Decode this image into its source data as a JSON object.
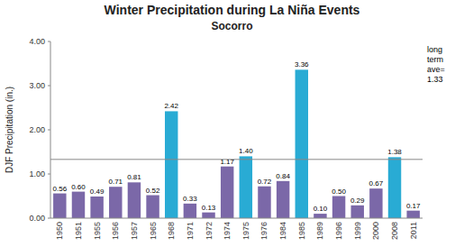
{
  "chart_data": {
    "type": "bar",
    "title": "Winter Precipitation during La Niña Events",
    "subtitle": "Socorro",
    "ylabel": "DJF Precipitation (in.)",
    "categories": [
      "1950",
      "1951",
      "1955",
      "1956",
      "1957",
      "1965",
      "1968",
      "1971",
      "1972",
      "1974",
      "1975",
      "1976",
      "1984",
      "1985",
      "1989",
      "1996",
      "1999",
      "2000",
      "2008",
      "2011"
    ],
    "values": [
      0.56,
      0.6,
      0.49,
      0.71,
      0.81,
      0.52,
      2.42,
      0.33,
      0.13,
      1.17,
      1.4,
      0.72,
      0.84,
      3.36,
      0.1,
      0.5,
      0.29,
      0.67,
      1.38,
      0.17
    ],
    "value_labels": [
      "0.56",
      "0.60",
      "0.49",
      "0.71",
      "0.81",
      "0.52",
      "2.42",
      "0.33",
      "0.13",
      "1.17",
      "1.40",
      "0.72",
      "0.84",
      "3.36",
      "0.10",
      "0.50",
      "0.29",
      "0.67",
      "1.38",
      "0.17"
    ],
    "colors": [
      "#7B68A8",
      "#7B68A8",
      "#7B68A8",
      "#7B68A8",
      "#7B68A8",
      "#7B68A8",
      "#29ABD4",
      "#7B68A8",
      "#7B68A8",
      "#7B68A8",
      "#29ABD4",
      "#7B68A8",
      "#7B68A8",
      "#29ABD4",
      "#7B68A8",
      "#7B68A8",
      "#7B68A8",
      "#7B68A8",
      "#29ABD4",
      "#7B68A8"
    ],
    "avg_line": 1.33,
    "avg_line_color": "#888888",
    "annotation": "long\nterm\nave=\n1.33",
    "ylim": [
      0.0,
      4.0
    ],
    "yticks": [
      {
        "value": 0.0,
        "label": "0.00"
      },
      {
        "value": 1.0,
        "label": "1.00"
      },
      {
        "value": 2.0,
        "label": "2.00"
      },
      {
        "value": 3.0,
        "label": "3.00"
      },
      {
        "value": 4.0,
        "label": "4.00"
      }
    ],
    "data_labels": true,
    "grid": false
  }
}
